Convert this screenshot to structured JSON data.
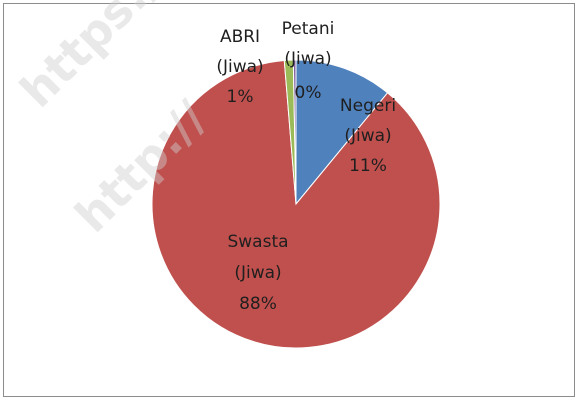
{
  "chart_data": {
    "type": "pie",
    "title": "",
    "slices": [
      {
        "category": "Negeri",
        "unit": "(Jiwa)",
        "percent_label": "11%",
        "value": 11,
        "color": "#4f81bd"
      },
      {
        "category": "Swasta",
        "unit": "(Jiwa)",
        "percent_label": "88%",
        "value": 88,
        "color": "#c0504d"
      },
      {
        "category": "ABRI",
        "unit": "(Jiwa)",
        "percent_label": "1%",
        "value": 1,
        "color": "#9bbb59"
      },
      {
        "category": "Petani",
        "unit": "(Jiwa)",
        "percent_label": "0%",
        "value": 0.3,
        "color": "#8064a2"
      }
    ]
  },
  "watermark": {
    "text_1": "https://",
    "text_2": "http://"
  },
  "colors": {
    "frame_border": "#8c8c8c",
    "label_text": "#1f1f1f"
  }
}
